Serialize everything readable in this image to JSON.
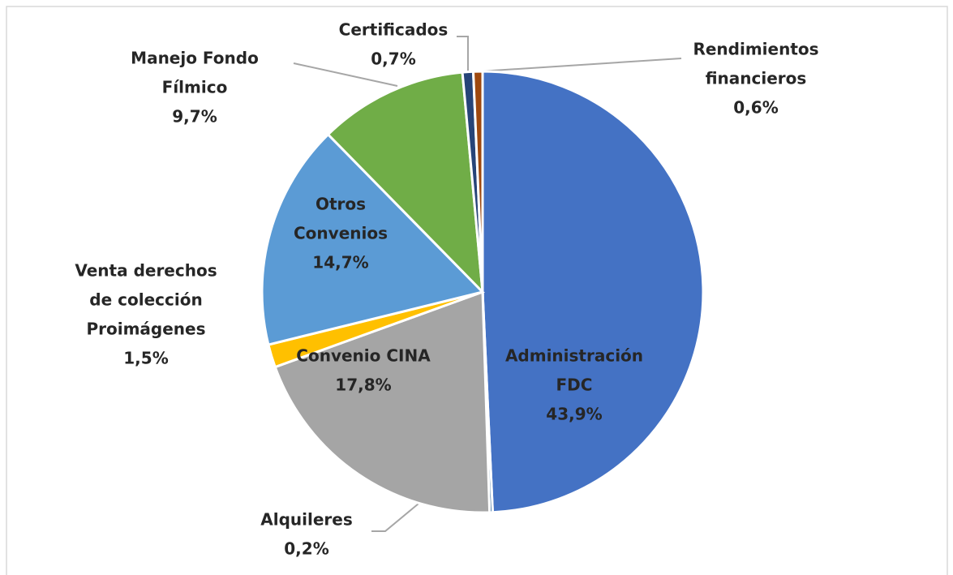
{
  "chart_data": {
    "type": "pie",
    "categories": [
      [
        "Administración",
        "FDC"
      ],
      [
        "Alquileres"
      ],
      [
        "Convenio CINA"
      ],
      [
        "Venta derechos",
        "de colección",
        "Proimágenes"
      ],
      [
        "Otros",
        "Convenios"
      ],
      [
        "Manejo Fondo",
        "Fílmico"
      ],
      [
        "Certificados"
      ],
      [
        "Rendimientos",
        "financieros"
      ]
    ],
    "values": [
      43.9,
      0.2,
      17.8,
      1.5,
      14.7,
      9.7,
      0.7,
      0.6
    ],
    "value_labels": [
      "43,9%",
      "0,2%",
      "17,8%",
      "1,5%",
      "14,7%",
      "9,7%",
      "0,7%",
      "0,6%"
    ],
    "colors": [
      "#4472c4",
      "#255e91",
      "#a5a5a5",
      "#ffc000",
      "#5b9bd5",
      "#70ad47",
      "#264478",
      "#9e480e"
    ]
  }
}
